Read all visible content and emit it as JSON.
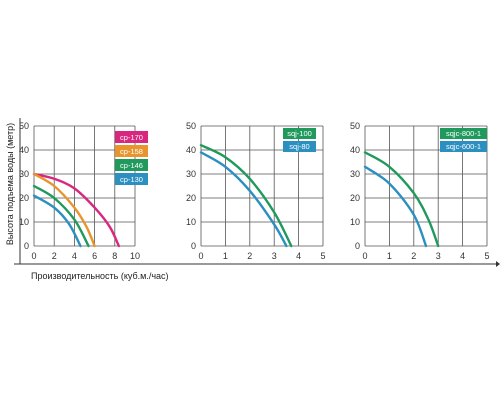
{
  "chart_data": [
    {
      "type": "line",
      "xlabel": "Производительность (куб.м./час)",
      "ylabel": "Высота подъема воды (метр)",
      "xlim": [
        0,
        10
      ],
      "ylim": [
        0,
        50
      ],
      "xticks": [
        0,
        2,
        4,
        6,
        8,
        10
      ],
      "yticks": [
        0,
        10,
        20,
        30,
        40,
        50
      ],
      "grid": true,
      "legend_position": "top-right",
      "series": [
        {
          "name": "cp-170",
          "color": "#d9267f",
          "x": [
            0,
            2,
            4,
            6,
            7.5,
            8.4
          ],
          "y": [
            30,
            28,
            24,
            16,
            8,
            0
          ]
        },
        {
          "name": "cp-158",
          "color": "#e8952d",
          "x": [
            0,
            2,
            4,
            5.2,
            6
          ],
          "y": [
            30,
            25,
            16,
            8,
            0
          ]
        },
        {
          "name": "cp-146",
          "color": "#1f9a5c",
          "x": [
            0,
            2,
            4,
            5.4
          ],
          "y": [
            25,
            20,
            11,
            0
          ]
        },
        {
          "name": "cp-130",
          "color": "#2b8fc0",
          "x": [
            0,
            2,
            3.5,
            4.6
          ],
          "y": [
            21,
            16,
            9,
            0
          ]
        }
      ]
    },
    {
      "type": "line",
      "xlim": [
        0,
        5
      ],
      "ylim": [
        0,
        50
      ],
      "xticks": [
        0,
        1,
        2,
        3,
        4,
        5
      ],
      "yticks": [
        0,
        10,
        20,
        30,
        40,
        50
      ],
      "grid": true,
      "legend_position": "top-right",
      "series": [
        {
          "name": "sqj-100",
          "color": "#1f9a5c",
          "x": [
            0,
            1,
            2,
            3,
            3.7
          ],
          "y": [
            42,
            37,
            28,
            14,
            0
          ]
        },
        {
          "name": "sqj-80",
          "color": "#2b8fc0",
          "x": [
            0,
            1,
            2,
            3,
            3.5
          ],
          "y": [
            39,
            33,
            23,
            9,
            0
          ]
        }
      ]
    },
    {
      "type": "line",
      "xlim": [
        0,
        5
      ],
      "ylim": [
        0,
        50
      ],
      "xticks": [
        0,
        1,
        2,
        3,
        4,
        5
      ],
      "yticks": [
        0,
        10,
        20,
        30,
        40,
        50
      ],
      "grid": true,
      "legend_position": "top-right",
      "series": [
        {
          "name": "sqjc-800-1",
          "color": "#1f9a5c",
          "x": [
            0,
            1,
            2,
            2.6,
            3.0
          ],
          "y": [
            39,
            33,
            22,
            11,
            0
          ]
        },
        {
          "name": "sqjc-600-1",
          "color": "#2b8fc0",
          "x": [
            0,
            1,
            2,
            2.5
          ],
          "y": [
            33,
            26,
            13,
            0
          ]
        }
      ]
    }
  ]
}
